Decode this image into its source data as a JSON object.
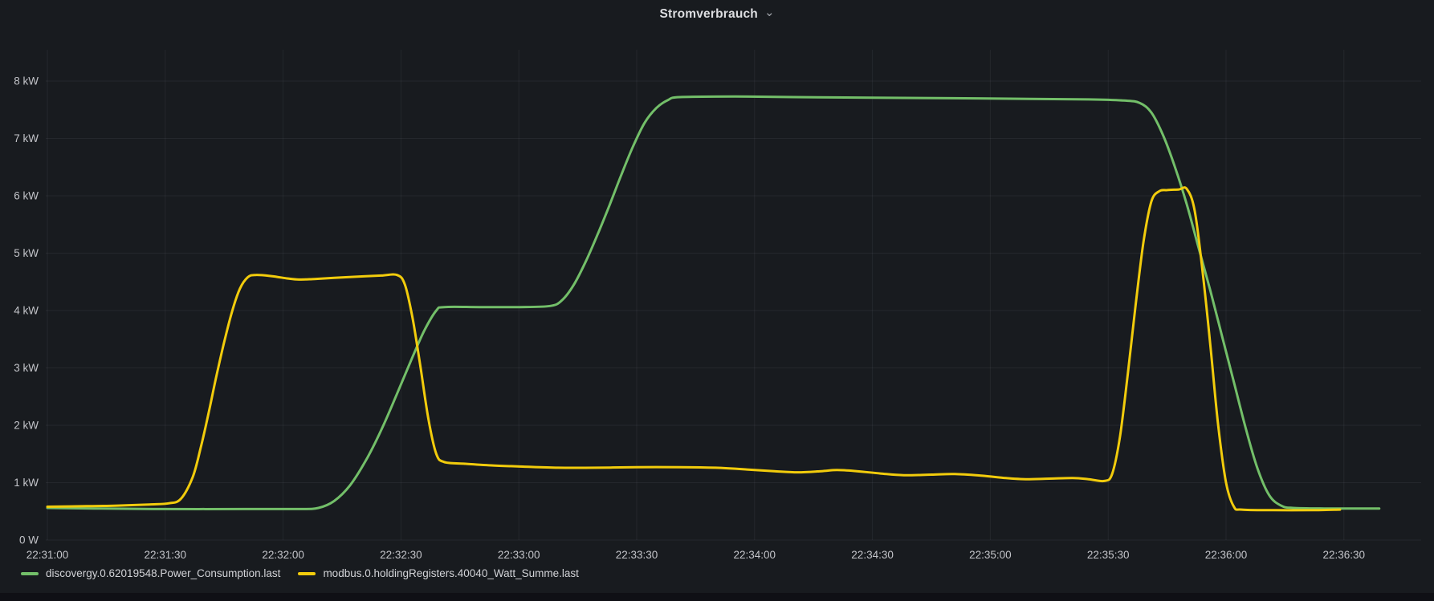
{
  "header": {
    "title": "Stromverbrauch"
  },
  "legend": {
    "items": [
      {
        "label": "discovergy.0.62019548.Power_Consumption.last",
        "color": "#73bf69"
      },
      {
        "label": "modbus.0.holdingRegisters.40040_Watt_Summe.last",
        "color": "#f2cc0c"
      }
    ]
  },
  "colors": {
    "panel_bg": "#181b1f",
    "page_bg": "#0f1015",
    "grid": "rgba(204,204,220,0.07)",
    "tick_text": "#c3c4c9",
    "title_text": "#dddee1",
    "green": "#73bf69",
    "yellow": "#f2cc0c"
  },
  "chart_data": {
    "type": "line",
    "title": "Stromverbrauch",
    "xlabel": "",
    "ylabel": "",
    "grid": true,
    "legend_position": "bottom-left",
    "x_unit": "time (hh:mm:ss), 30 s per tick",
    "y_unit": "kW",
    "ylim": [
      0,
      8.55
    ],
    "x_range_seconds": [
      0,
      350
    ],
    "x_ticks": [
      "22:31:00",
      "22:31:30",
      "22:32:00",
      "22:32:30",
      "22:33:00",
      "22:33:30",
      "22:34:00",
      "22:34:30",
      "22:35:00",
      "22:35:30",
      "22:36:00",
      "22:36:30"
    ],
    "y_ticks": [
      "0 W",
      "1 kW",
      "2 kW",
      "3 kW",
      "4 kW",
      "5 kW",
      "6 kW",
      "7 kW",
      "8 kW"
    ],
    "series": [
      {
        "name": "discovergy.0.62019548.Power_Consumption.last",
        "color": "#73bf69",
        "points": [
          [
            0,
            0.56
          ],
          [
            12,
            0.55
          ],
          [
            30,
            0.54
          ],
          [
            50,
            0.54
          ],
          [
            64,
            0.54
          ],
          [
            69,
            0.56
          ],
          [
            73,
            0.68
          ],
          [
            77,
            0.95
          ],
          [
            81,
            1.38
          ],
          [
            85,
            1.92
          ],
          [
            89,
            2.55
          ],
          [
            93,
            3.2
          ],
          [
            96,
            3.66
          ],
          [
            99,
            4.0
          ],
          [
            101,
            4.06
          ],
          [
            110,
            4.06
          ],
          [
            120,
            4.06
          ],
          [
            128,
            4.08
          ],
          [
            131,
            4.18
          ],
          [
            134,
            4.45
          ],
          [
            137,
            4.85
          ],
          [
            140,
            5.32
          ],
          [
            143,
            5.82
          ],
          [
            146,
            6.35
          ],
          [
            149,
            6.85
          ],
          [
            152,
            7.27
          ],
          [
            155,
            7.53
          ],
          [
            158,
            7.67
          ],
          [
            161,
            7.72
          ],
          [
            175,
            7.73
          ],
          [
            190,
            7.72
          ],
          [
            210,
            7.71
          ],
          [
            230,
            7.7
          ],
          [
            250,
            7.69
          ],
          [
            265,
            7.68
          ],
          [
            274,
            7.66
          ],
          [
            278,
            7.62
          ],
          [
            281,
            7.45
          ],
          [
            284,
            7.05
          ],
          [
            287,
            6.5
          ],
          [
            290,
            5.85
          ],
          [
            293,
            5.1
          ],
          [
            296,
            4.35
          ],
          [
            299,
            3.55
          ],
          [
            302,
            2.75
          ],
          [
            305,
            1.95
          ],
          [
            308,
            1.25
          ],
          [
            311,
            0.78
          ],
          [
            314,
            0.6
          ],
          [
            317,
            0.56
          ],
          [
            325,
            0.55
          ],
          [
            339,
            0.55
          ]
        ]
      },
      {
        "name": "modbus.0.holdingRegisters.40040_Watt_Summe.last",
        "color": "#f2cc0c",
        "points": [
          [
            0,
            0.58
          ],
          [
            10,
            0.59
          ],
          [
            18,
            0.6
          ],
          [
            26,
            0.62
          ],
          [
            31,
            0.64
          ],
          [
            34,
            0.72
          ],
          [
            37,
            1.1
          ],
          [
            39,
            1.6
          ],
          [
            41,
            2.2
          ],
          [
            43,
            2.85
          ],
          [
            45,
            3.45
          ],
          [
            47,
            3.98
          ],
          [
            49,
            4.38
          ],
          [
            51,
            4.58
          ],
          [
            53,
            4.62
          ],
          [
            57,
            4.6
          ],
          [
            61,
            4.56
          ],
          [
            64,
            4.54
          ],
          [
            68,
            4.55
          ],
          [
            73,
            4.57
          ],
          [
            79,
            4.59
          ],
          [
            85,
            4.61
          ],
          [
            89,
            4.62
          ],
          [
            91,
            4.45
          ],
          [
            93,
            3.85
          ],
          [
            95,
            3.0
          ],
          [
            97,
            2.1
          ],
          [
            99,
            1.5
          ],
          [
            101,
            1.36
          ],
          [
            106,
            1.33
          ],
          [
            113,
            1.3
          ],
          [
            121,
            1.28
          ],
          [
            130,
            1.26
          ],
          [
            140,
            1.26
          ],
          [
            150,
            1.27
          ],
          [
            161,
            1.27
          ],
          [
            170,
            1.26
          ],
          [
            178,
            1.23
          ],
          [
            185,
            1.2
          ],
          [
            191,
            1.18
          ],
          [
            197,
            1.2
          ],
          [
            201,
            1.22
          ],
          [
            206,
            1.2
          ],
          [
            212,
            1.16
          ],
          [
            218,
            1.13
          ],
          [
            225,
            1.14
          ],
          [
            231,
            1.15
          ],
          [
            238,
            1.12
          ],
          [
            244,
            1.08
          ],
          [
            249,
            1.06
          ],
          [
            255,
            1.07
          ],
          [
            261,
            1.08
          ],
          [
            265,
            1.06
          ],
          [
            269,
            1.03
          ],
          [
            271,
            1.15
          ],
          [
            273,
            1.8
          ],
          [
            275,
            2.9
          ],
          [
            277,
            4.1
          ],
          [
            279,
            5.2
          ],
          [
            281,
            5.9
          ],
          [
            283,
            6.08
          ],
          [
            285,
            6.1
          ],
          [
            288,
            6.11
          ],
          [
            290,
            6.12
          ],
          [
            292,
            5.75
          ],
          [
            294,
            4.7
          ],
          [
            296,
            3.4
          ],
          [
            298,
            2.0
          ],
          [
            300,
            1.0
          ],
          [
            302,
            0.58
          ],
          [
            304,
            0.53
          ],
          [
            312,
            0.52
          ],
          [
            322,
            0.52
          ],
          [
            329,
            0.53
          ]
        ]
      }
    ]
  }
}
